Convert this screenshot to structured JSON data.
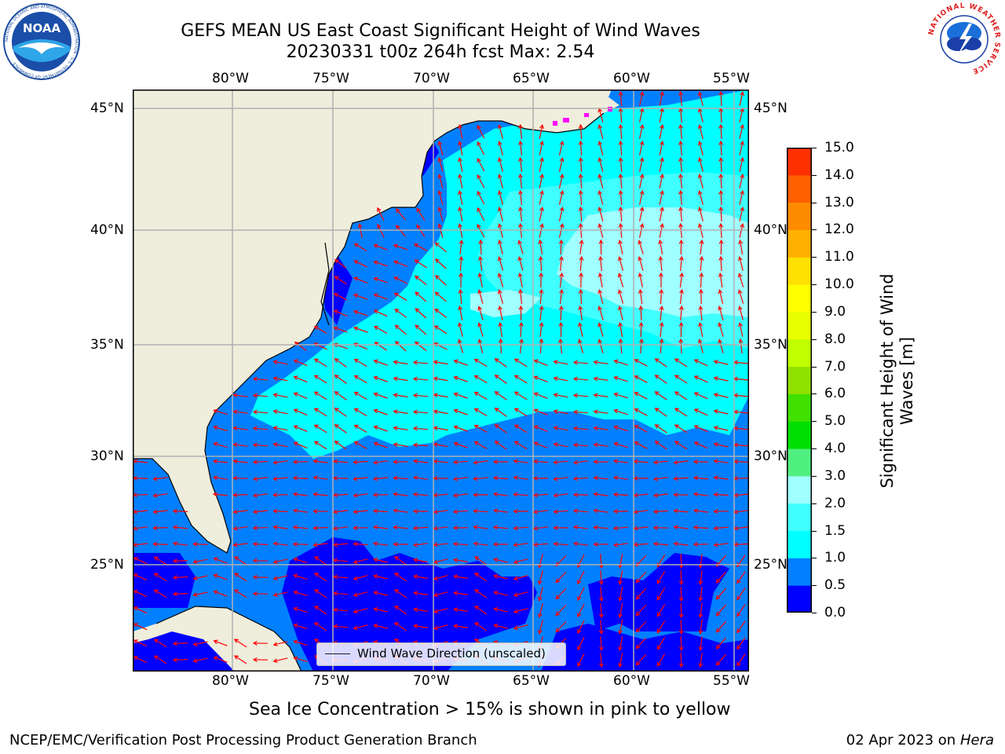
{
  "header": {
    "title": "GEFS MEAN US East Coast Significant Height of Wind Waves",
    "subtitle": "20230331 t00z 264h fcst   Max: 2.54"
  },
  "logos": {
    "left": "NOAA",
    "left_ring": "NATIONAL OCEANIC AND ATMOSPHERIC ADMINISTRATION · U.S. DEPARTMENT OF COMMERCE",
    "right_ring": "NATIONAL WEATHER SERVICE"
  },
  "map": {
    "lon_labels": [
      "80°W",
      "75°W",
      "70°W",
      "65°W",
      "60°W",
      "55°W"
    ],
    "lat_labels": [
      "45°N",
      "40°N",
      "35°N",
      "30°N",
      "25°N"
    ],
    "legend_text": "Wind Wave Direction (unscaled)",
    "colors": {
      "land": "#efeddc",
      "ocean_0_05": "#0000ff",
      "ocean_05_1": "#0080ff",
      "ocean_1_15": "#00ffff",
      "ocean_15_2": "#40ffff",
      "ocean_2_3": "#a0ffff",
      "arrows": "#ff0000",
      "grid": "#b0b0b0"
    }
  },
  "colorbar": {
    "label_line1": "Significant Height of Wind",
    "label_line2": "Waves [m]",
    "ticks": [
      "0.0",
      "0.5",
      "1.0",
      "1.5",
      "2.0",
      "3.0",
      "4.0",
      "5.0",
      "6.0",
      "7.0",
      "8.0",
      "9.0",
      "10.0",
      "11.0",
      "12.0",
      "13.0",
      "14.0",
      "15.0"
    ],
    "colors": [
      "#0000ff",
      "#0080ff",
      "#00ffff",
      "#40ffff",
      "#a0ffff",
      "#50f080",
      "#00e000",
      "#40e000",
      "#90e000",
      "#c0ff00",
      "#e8ff00",
      "#ffff00",
      "#ffe000",
      "#ffb000",
      "#ff8c00",
      "#ff6000",
      "#ff3000",
      "#ff0000"
    ]
  },
  "note": "Sea Ice Concentration > 15% is shown in pink to yellow",
  "footer": {
    "left": "NCEP/EMC/Verification Post Processing Product Generation Branch",
    "right_prefix": "02 Apr 2023 on ",
    "right_host": "Hera"
  }
}
